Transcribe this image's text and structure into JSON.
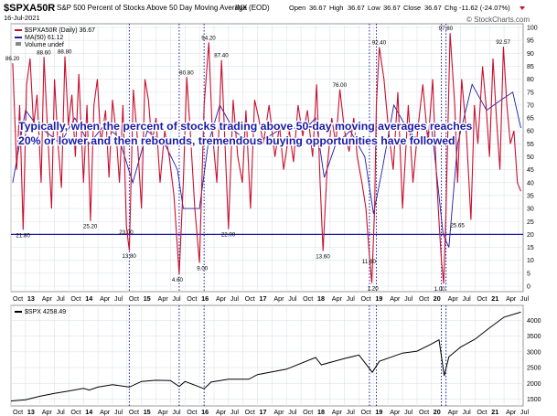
{
  "header": {
    "symbol": "$SPXA50R",
    "description": "S&P 500 Percent of Stocks Above 50 Day Moving Average (EOD)",
    "exchange": "INX",
    "date": "16-Jul-2021",
    "watermark": "© StockCharts.com",
    "quote": {
      "open_label": "Open",
      "open": "36.67",
      "high_label": "High",
      "high": "36.67",
      "low_label": "Low",
      "low": "36.67",
      "close_label": "Close",
      "close": "36.67",
      "chg_label": "Chg",
      "chg": "-11.62 (-24.07%)"
    }
  },
  "annotation": {
    "line1": "Typically, when the percent of stocks trading above 50-day moving averages reaches",
    "line2": "20% or lower and then rebounds, tremendous buying opportunities have followed"
  },
  "colors": {
    "primary_series": "#c8102e",
    "ma_series": "#1a1aa8",
    "spx_series": "#000000",
    "threshold_line": "#1a1aa8",
    "annotation_text": "#1a1aa8",
    "grid": "#dde3ea",
    "event_line": "#1a1aa8",
    "down_marker": "#c8102e"
  },
  "chart_data": [
    {
      "type": "line",
      "legend": [
        {
          "label": "$SPXA50R (Daily) 36.67",
          "color": "#c8102e"
        },
        {
          "label": "MA(50) 61.12",
          "color": "#1a1aa8"
        },
        {
          "label": "Volume undef",
          "color": "#888888"
        }
      ],
      "ylim": [
        0,
        100
      ],
      "yticks": [
        0,
        5,
        10,
        15,
        20,
        25,
        30,
        35,
        40,
        45,
        50,
        55,
        60,
        65,
        70,
        75,
        80,
        85,
        90,
        95,
        100
      ],
      "threshold": 20,
      "x_range": [
        2012.75,
        2021.58
      ],
      "event_dates": [
        2014.79,
        2015.65,
        2016.08,
        2018.93,
        2019.05,
        2020.17,
        2020.25
      ],
      "series": [
        {
          "name": "$SPXA50R",
          "x": [
            2012.78,
            2012.85,
            2012.9,
            2012.96,
            2013.02,
            2013.08,
            2013.14,
            2013.2,
            2013.27,
            2013.32,
            2013.38,
            2013.45,
            2013.5,
            2013.56,
            2013.62,
            2013.68,
            2013.74,
            2013.8,
            2013.86,
            2013.92,
            2014.0,
            2014.06,
            2014.12,
            2014.18,
            2014.24,
            2014.3,
            2014.38,
            2014.44,
            2014.5,
            2014.56,
            2014.62,
            2014.68,
            2014.74,
            2014.79,
            2014.86,
            2014.92,
            2015.0,
            2015.06,
            2015.12,
            2015.18,
            2015.25,
            2015.32,
            2015.4,
            2015.48,
            2015.56,
            2015.65,
            2015.72,
            2015.78,
            2015.84,
            2015.92,
            2016.0,
            2016.08,
            2016.16,
            2016.22,
            2016.3,
            2016.38,
            2016.44,
            2016.5,
            2016.58,
            2016.66,
            2016.74,
            2016.8,
            2016.88,
            2016.95,
            2017.02,
            2017.1,
            2017.2,
            2017.3,
            2017.38,
            2017.45,
            2017.55,
            2017.62,
            2017.7,
            2017.78,
            2017.86,
            2017.95,
            2018.02,
            2018.08,
            2018.13,
            2018.2,
            2018.28,
            2018.35,
            2018.42,
            2018.5,
            2018.58,
            2018.66,
            2018.72,
            2018.8,
            2018.87,
            2018.93,
            2018.97,
            2019.02,
            2019.05,
            2019.1,
            2019.18,
            2019.26,
            2019.34,
            2019.42,
            2019.5,
            2019.6,
            2019.68,
            2019.76,
            2019.85,
            2019.94,
            2020.02,
            2020.08,
            2020.13,
            2020.17,
            2020.21,
            2020.25,
            2020.32,
            2020.4,
            2020.45,
            2020.52,
            2020.6,
            2020.68,
            2020.74,
            2020.8,
            2020.88,
            2020.94,
            2021.0,
            2021.06,
            2021.12,
            2021.18,
            2021.24,
            2021.3,
            2021.36,
            2021.42,
            2021.48,
            2021.54
          ],
          "values": [
            86.2,
            45,
            70,
            21.8,
            78,
            88,
            62,
            74,
            40,
            88.6,
            60,
            30,
            80,
            55,
            38,
            88.8,
            62,
            74,
            50,
            82,
            40,
            70,
            25.2,
            70,
            80,
            55,
            68,
            42,
            72,
            60,
            40,
            70,
            23,
            13.8,
            76,
            60,
            30,
            80,
            72,
            55,
            65,
            40,
            60,
            50,
            35,
            4.6,
            40,
            80.8,
            60,
            30,
            9.0,
            70,
            94.2,
            60,
            40,
            87.4,
            55,
            22,
            72,
            50,
            40,
            68,
            30,
            72,
            65,
            55,
            70,
            50,
            62,
            45,
            60,
            48,
            70,
            58,
            68,
            50,
            78,
            40,
            13.6,
            45,
            65,
            55,
            76.0,
            60,
            52,
            65,
            50,
            40,
            30,
            11.6,
            1.2,
            30,
            70,
            92.4,
            80,
            60,
            45,
            75,
            30,
            70,
            40,
            60,
            78,
            55,
            80,
            45,
            25,
            10,
            1.0,
            30,
            97.8,
            70,
            40,
            80,
            60,
            25.65,
            70,
            55,
            85,
            70,
            50,
            88,
            65,
            45,
            92.57,
            70,
            55,
            60,
            40,
            36.67
          ]
        },
        {
          "name": "MA(50)",
          "x": [
            2012.78,
            2013.0,
            2013.2,
            2013.45,
            2013.6,
            2013.85,
            2014.1,
            2014.35,
            2014.6,
            2014.85,
            2015.1,
            2015.4,
            2015.62,
            2015.72,
            2016.0,
            2016.15,
            2016.35,
            2016.6,
            2016.9,
            2017.2,
            2017.5,
            2017.8,
            2018.0,
            2018.15,
            2018.35,
            2018.6,
            2018.85,
            2019.0,
            2019.15,
            2019.35,
            2019.6,
            2019.85,
            2020.0,
            2020.2,
            2020.3,
            2020.45,
            2020.7,
            2020.95,
            2021.2,
            2021.4,
            2021.54
          ],
          "values": [
            40,
            68,
            62,
            58,
            55,
            65,
            55,
            62,
            58,
            40,
            60,
            55,
            45,
            30,
            30,
            55,
            70,
            60,
            55,
            58,
            62,
            60,
            65,
            42,
            55,
            60,
            50,
            28,
            45,
            70,
            60,
            55,
            62,
            20,
            15,
            55,
            78,
            68,
            72,
            75,
            61.12
          ]
        }
      ],
      "point_labels": [
        {
          "x": 2012.78,
          "value": 86.2,
          "text": "86.20"
        },
        {
          "x": 2012.96,
          "value": 21.8,
          "text": "21.80"
        },
        {
          "x": 2013.32,
          "value": 88.6,
          "text": "88.60"
        },
        {
          "x": 2013.68,
          "value": 88.8,
          "text": "88.80"
        },
        {
          "x": 2014.12,
          "value": 25.2,
          "text": "25.20"
        },
        {
          "x": 2014.74,
          "value": 23.0,
          "text": "23.00"
        },
        {
          "x": 2014.79,
          "value": 13.8,
          "text": "13.80"
        },
        {
          "x": 2015.65,
          "value": 4.6,
          "text": "4.60"
        },
        {
          "x": 2015.78,
          "value": 80.8,
          "text": "80.80"
        },
        {
          "x": 2016.08,
          "value": 9.0,
          "text": "9.00"
        },
        {
          "x": 2016.16,
          "value": 94.2,
          "text": "94.20"
        },
        {
          "x": 2016.38,
          "value": 87.4,
          "text": "87.40"
        },
        {
          "x": 2016.5,
          "value": 22.0,
          "text": "22.00"
        },
        {
          "x": 2018.13,
          "value": 13.6,
          "text": "13.60"
        },
        {
          "x": 2018.42,
          "value": 76.0,
          "text": "76.00"
        },
        {
          "x": 2018.93,
          "value": 11.6,
          "text": "11.60"
        },
        {
          "x": 2019.02,
          "value": 1.2,
          "text": "1.20"
        },
        {
          "x": 2019.1,
          "value": 92.4,
          "text": "92.40"
        },
        {
          "x": 2020.17,
          "value": 1.0,
          "text": "1.00"
        },
        {
          "x": 2020.25,
          "value": 97.8,
          "text": "97.80"
        },
        {
          "x": 2020.45,
          "value": 25.65,
          "text": "25.65"
        },
        {
          "x": 2021.24,
          "value": 92.57,
          "text": "92.57"
        }
      ],
      "xaxis_labels": [
        "Oct",
        "13",
        "Apr",
        "Jul",
        "Oct",
        "14",
        "Apr",
        "Jul",
        "Oct",
        "15",
        "Apr",
        "Jul",
        "Oct",
        "16",
        "Apr",
        "Jul",
        "Oct",
        "17",
        "Apr",
        "Jul",
        "Oct",
        "18",
        "Apr",
        "Jul",
        "Oct",
        "19",
        "Apr",
        "Jul",
        "Oct",
        "20",
        "Apr",
        "Jul",
        "Oct",
        "21",
        "Apr",
        "Jul"
      ],
      "xaxis_positions": [
        2012.75,
        2013.0,
        2013.25,
        2013.5,
        2013.75,
        2014.0,
        2014.25,
        2014.5,
        2014.75,
        2015.0,
        2015.25,
        2015.5,
        2015.75,
        2016.0,
        2016.25,
        2016.5,
        2016.75,
        2017.0,
        2017.25,
        2017.5,
        2017.75,
        2018.0,
        2018.25,
        2018.5,
        2018.75,
        2019.0,
        2019.25,
        2019.5,
        2019.75,
        2020.0,
        2020.25,
        2020.5,
        2020.75,
        2021.0,
        2021.25,
        2021.5
      ]
    },
    {
      "type": "line",
      "legend": [
        {
          "label": "$SPX 4258.49",
          "color": "#000000"
        }
      ],
      "ylim": [
        1400,
        4300
      ],
      "yticks": [
        1500,
        2000,
        2500,
        3000,
        3500,
        4000
      ],
      "series": [
        {
          "name": "$SPX",
          "x": [
            2012.75,
            2013.0,
            2013.25,
            2013.5,
            2013.75,
            2014.0,
            2014.1,
            2014.25,
            2014.5,
            2014.79,
            2015.0,
            2015.25,
            2015.5,
            2015.65,
            2015.75,
            2016.08,
            2016.2,
            2016.5,
            2016.85,
            2017.0,
            2017.5,
            2018.0,
            2018.1,
            2018.5,
            2018.75,
            2018.98,
            2019.1,
            2019.5,
            2019.75,
            2020.0,
            2020.13,
            2020.22,
            2020.3,
            2020.5,
            2020.75,
            2021.0,
            2021.25,
            2021.54
          ],
          "values": [
            1440,
            1480,
            1590,
            1680,
            1760,
            1840,
            1790,
            1880,
            1960,
            1880,
            2060,
            2100,
            2090,
            1900,
            2060,
            1830,
            2040,
            2130,
            2130,
            2280,
            2450,
            2820,
            2590,
            2790,
            2900,
            2350,
            2700,
            2960,
            3020,
            3250,
            3380,
            2240,
            2840,
            3150,
            3400,
            3760,
            4100,
            4258.49
          ]
        }
      ]
    }
  ]
}
